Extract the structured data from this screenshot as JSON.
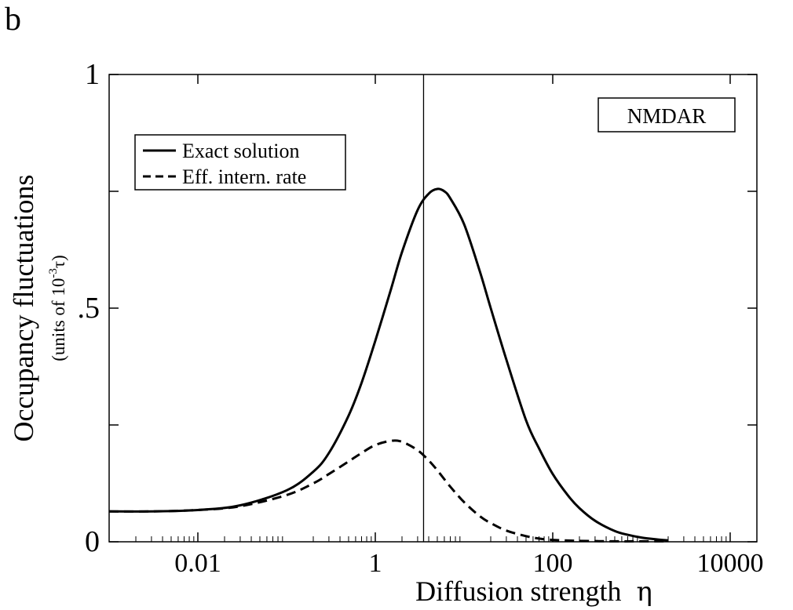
{
  "panel_label": "b",
  "chart_data": {
    "type": "line",
    "title": "",
    "xlabel": "Diffusion strength",
    "xlabel_symbol": "η",
    "ylabel": "Occupancy fluctuations",
    "ylabel_units": "(units of 10",
    "ylabel_units_exp": "-3",
    "ylabel_units_tail": "τ)",
    "xscale": "log",
    "xlim": [
      0.001,
      20000
    ],
    "ylim": [
      0,
      1
    ],
    "xticks": [
      {
        "value": 0.01,
        "label": "0.01"
      },
      {
        "value": 1,
        "label": "1"
      },
      {
        "value": 100,
        "label": "100"
      },
      {
        "value": 10000,
        "label": "10000"
      }
    ],
    "yticks": [
      {
        "value": 0,
        "label": "0"
      },
      {
        "value": 0.25,
        "label": ""
      },
      {
        "value": 0.5,
        "label": ".5"
      },
      {
        "value": 0.75,
        "label": ""
      },
      {
        "value": 1,
        "label": "1"
      }
    ],
    "vertical_line_x": 3.5,
    "annotation": "NMDAR",
    "legend": [
      {
        "label": "Exact solution",
        "style": "solid"
      },
      {
        "label": "Eff. intern. rate",
        "style": "dashed"
      }
    ],
    "series": [
      {
        "name": "Exact solution",
        "style": "solid",
        "x": [
          0.001,
          0.003,
          0.01,
          0.03,
          0.1,
          0.2,
          0.3,
          0.5,
          0.7,
          1,
          1.5,
          2,
          3,
          4,
          5,
          6,
          7,
          10,
          15,
          20,
          30,
          50,
          70,
          100,
          150,
          200,
          300,
          500,
          700,
          1000,
          1500,
          2000
        ],
        "values": [
          0.065,
          0.065,
          0.068,
          0.078,
          0.11,
          0.15,
          0.19,
          0.27,
          0.34,
          0.43,
          0.54,
          0.62,
          0.71,
          0.745,
          0.755,
          0.75,
          0.735,
          0.68,
          0.58,
          0.5,
          0.39,
          0.26,
          0.2,
          0.145,
          0.098,
          0.072,
          0.045,
          0.023,
          0.015,
          0.009,
          0.005,
          0.003
        ]
      },
      {
        "name": "Eff. intern. rate",
        "style": "dashed",
        "x": [
          0.001,
          0.003,
          0.01,
          0.03,
          0.1,
          0.2,
          0.3,
          0.5,
          0.7,
          1,
          1.5,
          2,
          3,
          4,
          5,
          7,
          10,
          15,
          20,
          30,
          50,
          70,
          100,
          200,
          500,
          1000,
          2000
        ],
        "values": [
          0.065,
          0.065,
          0.068,
          0.076,
          0.1,
          0.125,
          0.145,
          0.172,
          0.19,
          0.207,
          0.216,
          0.214,
          0.196,
          0.174,
          0.153,
          0.118,
          0.085,
          0.055,
          0.04,
          0.024,
          0.012,
          0.007,
          0.004,
          0.002,
          0.001,
          0.001,
          0.001
        ]
      }
    ]
  }
}
